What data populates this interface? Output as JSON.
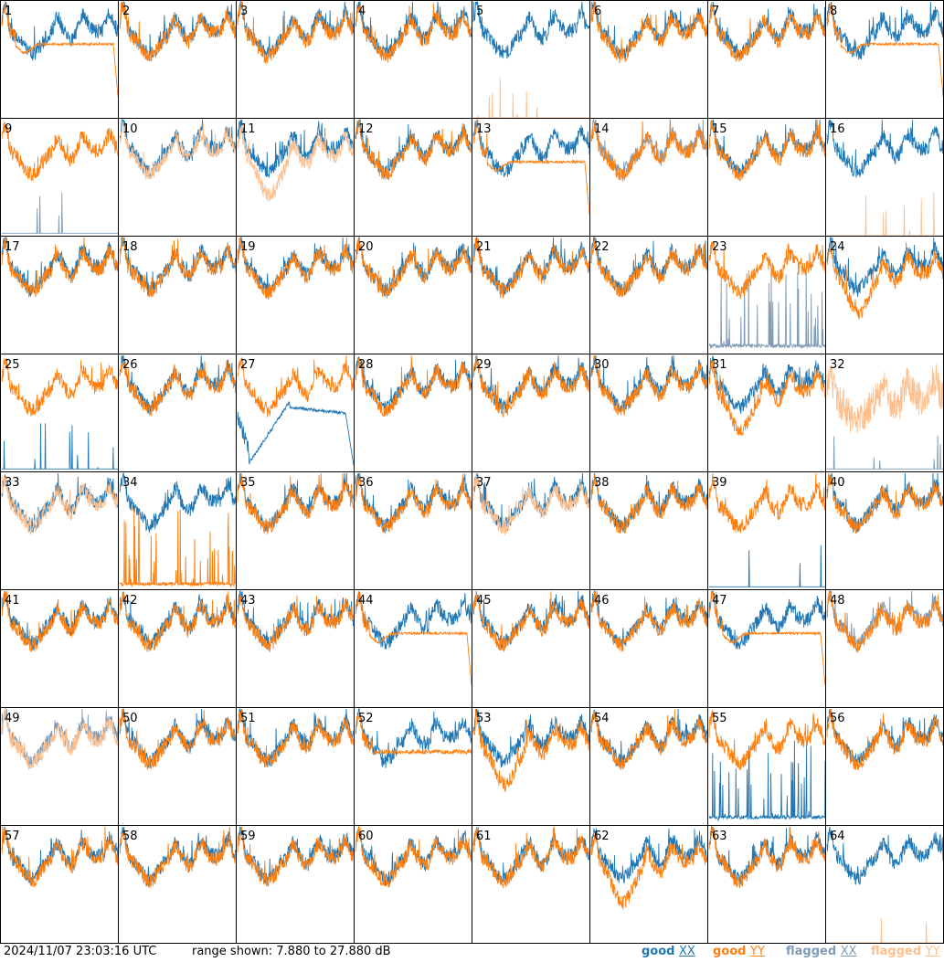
{
  "footer": {
    "timestamp": "2024/11/07 23:03:16 UTC",
    "range_text": "range shown: 7.880 to 27.880 dB"
  },
  "legend": [
    {
      "label": "good",
      "suffix": "XX",
      "color": "#1f77b4"
    },
    {
      "label": "good",
      "suffix": "YY",
      "color": "#ff7f0e"
    },
    {
      "label": "flagged",
      "suffix": "XX",
      "color": "#7f9bb5"
    },
    {
      "label": "flagged",
      "suffix": "YY",
      "color": "#ffbf8c"
    }
  ],
  "colors": {
    "good_xx": "#1f77b4",
    "good_yy": "#ff7f0e",
    "flagged_xx": "#7f9bb5",
    "flagged_yy": "#ffbf8c"
  },
  "chart_data": {
    "type": "line",
    "ylim_db": [
      7.88,
      27.88
    ],
    "grid": "8x8 small multiples",
    "panels": [
      {
        "n": 1,
        "xx": "good",
        "yy": "good",
        "yy_shape": "flat_drop"
      },
      {
        "n": 2,
        "xx": "good",
        "yy": "good"
      },
      {
        "n": 3,
        "xx": "good",
        "yy": "good"
      },
      {
        "n": 4,
        "xx": "good",
        "yy": "good"
      },
      {
        "n": 5,
        "xx": "good",
        "yy": "flagged",
        "yy_shape": "spikes"
      },
      {
        "n": 6,
        "xx": "good",
        "yy": "good"
      },
      {
        "n": 7,
        "xx": "good",
        "yy": "good"
      },
      {
        "n": 8,
        "xx": "good",
        "yy": "good",
        "yy_shape": "flat_drop"
      },
      {
        "n": 9,
        "xx": "flagged",
        "yy": "good",
        "xx_shape": "spikes"
      },
      {
        "n": 10,
        "xx": "good",
        "yy": "flagged"
      },
      {
        "n": 11,
        "xx": "good",
        "yy": "flagged",
        "yy_shape": "deep"
      },
      {
        "n": 12,
        "xx": "good",
        "yy": "good"
      },
      {
        "n": 13,
        "xx": "good",
        "yy": "good",
        "yy_shape": "flat_drop"
      },
      {
        "n": 14,
        "xx": "flagged",
        "yy": "good"
      },
      {
        "n": 15,
        "xx": "good",
        "yy": "good"
      },
      {
        "n": 16,
        "xx": "good",
        "yy": "flagged",
        "yy_shape": "spikes"
      },
      {
        "n": 17,
        "xx": "good",
        "yy": "good"
      },
      {
        "n": 18,
        "xx": "good",
        "yy": "good"
      },
      {
        "n": 19,
        "xx": "good",
        "yy": "good"
      },
      {
        "n": 20,
        "xx": "good",
        "yy": "good"
      },
      {
        "n": 21,
        "xx": "good",
        "yy": "good"
      },
      {
        "n": 22,
        "xx": "good",
        "yy": "good"
      },
      {
        "n": 23,
        "xx": "flagged",
        "yy": "good",
        "xx_shape": "spikes_dense"
      },
      {
        "n": 24,
        "xx": "good",
        "yy": "good",
        "yy_shape": "deep"
      },
      {
        "n": 25,
        "xx": "good",
        "yy": "good",
        "xx_shape": "spikes"
      },
      {
        "n": 26,
        "xx": "good",
        "yy": "good"
      },
      {
        "n": 27,
        "xx": "good",
        "yy": "good",
        "xx_shape": "deep_drop"
      },
      {
        "n": 28,
        "xx": "good",
        "yy": "good"
      },
      {
        "n": 29,
        "xx": "good",
        "yy": "good"
      },
      {
        "n": 30,
        "xx": "good",
        "yy": "good"
      },
      {
        "n": 31,
        "xx": "good",
        "yy": "good",
        "yy_shape": "deep"
      },
      {
        "n": 32,
        "xx": "flagged",
        "yy": "flagged",
        "xx_shape": "spikes",
        "yy_shape": "noisy"
      },
      {
        "n": 33,
        "xx": "good",
        "yy": "flagged"
      },
      {
        "n": 34,
        "xx": "good",
        "yy": "good",
        "yy_shape": "spikes_dense"
      },
      {
        "n": 35,
        "xx": "good",
        "yy": "good"
      },
      {
        "n": 36,
        "xx": "good",
        "yy": "good"
      },
      {
        "n": 37,
        "xx": "good",
        "yy": "flagged"
      },
      {
        "n": 38,
        "xx": "good",
        "yy": "good"
      },
      {
        "n": 39,
        "xx": "good",
        "yy": "good",
        "xx_shape": "spikes"
      },
      {
        "n": 40,
        "xx": "good",
        "yy": "good"
      },
      {
        "n": 41,
        "xx": "good",
        "yy": "good"
      },
      {
        "n": 42,
        "xx": "good",
        "yy": "good"
      },
      {
        "n": 43,
        "xx": "good",
        "yy": "good"
      },
      {
        "n": 44,
        "xx": "good",
        "yy": "good",
        "yy_shape": "flat_drop"
      },
      {
        "n": 45,
        "xx": "good",
        "yy": "good"
      },
      {
        "n": 46,
        "xx": "good",
        "yy": "good"
      },
      {
        "n": 47,
        "xx": "good",
        "yy": "good",
        "yy_shape": "flat_drop"
      },
      {
        "n": 48,
        "xx": "flagged",
        "yy": "good"
      },
      {
        "n": 49,
        "xx": "flagged",
        "yy": "flagged"
      },
      {
        "n": 50,
        "xx": "good",
        "yy": "good"
      },
      {
        "n": 51,
        "xx": "good",
        "yy": "good"
      },
      {
        "n": 52,
        "xx": "good",
        "yy": "good",
        "yy_shape": "flat"
      },
      {
        "n": 53,
        "xx": "good",
        "yy": "good",
        "yy_shape": "deep"
      },
      {
        "n": 54,
        "xx": "good",
        "yy": "good"
      },
      {
        "n": 55,
        "xx": "good",
        "yy": "good",
        "xx_shape": "spikes_dense"
      },
      {
        "n": 56,
        "xx": "good",
        "yy": "good"
      },
      {
        "n": 57,
        "xx": "good",
        "yy": "good"
      },
      {
        "n": 58,
        "xx": "good",
        "yy": "good"
      },
      {
        "n": 59,
        "xx": "good",
        "yy": "good"
      },
      {
        "n": 60,
        "xx": "good",
        "yy": "good"
      },
      {
        "n": 61,
        "xx": "good",
        "yy": "good"
      },
      {
        "n": 62,
        "xx": "good",
        "yy": "good",
        "yy_shape": "deep"
      },
      {
        "n": 63,
        "xx": "good",
        "yy": "good"
      },
      {
        "n": 64,
        "xx": "good",
        "yy": "flagged",
        "yy_shape": "spikes"
      }
    ]
  }
}
